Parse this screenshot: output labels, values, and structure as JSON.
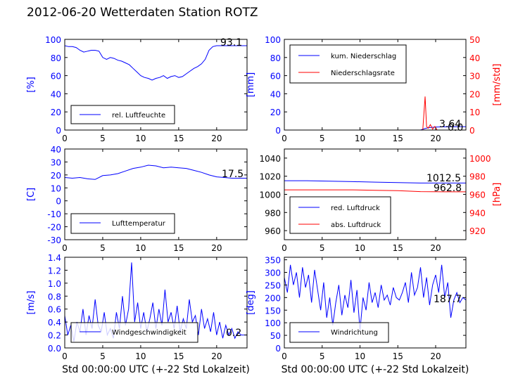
{
  "page": {
    "title": "2012-06-20 Wetterdaten Station ROTZ"
  },
  "chart_data": [
    {
      "type": "line",
      "ylabel": "[%]",
      "xlabel": "",
      "xlim": [
        0,
        24
      ],
      "ylim": [
        0,
        100
      ],
      "xticks": [
        0,
        5,
        10,
        15,
        20
      ],
      "yticks": [
        0,
        20,
        40,
        60,
        80,
        100
      ],
      "legend_position": "bottom-left",
      "current_value": "93.1",
      "series": [
        {
          "name": "rel. Luftfeuchte",
          "color": "#0000ff",
          "x": [
            0,
            0.5,
            1,
            1.5,
            2,
            2.5,
            3,
            3.5,
            4,
            4.5,
            5,
            5.5,
            6,
            6.5,
            7,
            7.5,
            8,
            8.5,
            9,
            9.5,
            10,
            10.5,
            11,
            11.5,
            12,
            12.5,
            13,
            13.5,
            14,
            14.5,
            15,
            15.5,
            16,
            16.5,
            17,
            17.5,
            18,
            18.5,
            19,
            19.5,
            20,
            20.5,
            21,
            21.5,
            22,
            22.5,
            23,
            23.5,
            24
          ],
          "y": [
            93,
            92,
            92,
            91,
            88,
            86,
            87,
            88,
            88,
            87,
            80,
            78,
            80,
            79,
            77,
            76,
            74,
            72,
            68,
            64,
            60,
            58,
            57,
            55,
            57,
            58,
            60,
            57,
            59,
            60,
            58,
            59,
            62,
            65,
            68,
            70,
            73,
            78,
            88,
            92,
            93,
            93,
            93,
            93,
            93,
            93,
            93,
            93,
            93
          ]
        }
      ]
    },
    {
      "type": "line",
      "ylabel": "[mm]",
      "ylabel_right": "[mm/std]",
      "xlabel": "",
      "xlim": [
        0,
        24
      ],
      "ylim": [
        0,
        100
      ],
      "ylim_right": [
        0,
        50
      ],
      "xticks": [
        0,
        5,
        10,
        15,
        20
      ],
      "yticks": [
        0,
        20,
        40,
        60,
        80,
        100
      ],
      "yticks_right": [
        0,
        10,
        20,
        30,
        40,
        50
      ],
      "legend_position": "top-left",
      "current_values": [
        "3.64",
        "0.0"
      ],
      "series": [
        {
          "name": "kum. Niederschlag",
          "color": "#0000ff",
          "axis": "left",
          "x": [
            0,
            18,
            18.5,
            19,
            19.5,
            20,
            21,
            22,
            23,
            24
          ],
          "y": [
            0,
            0,
            1.5,
            2.5,
            3,
            3.3,
            3.5,
            3.6,
            3.64,
            3.64
          ]
        },
        {
          "name": "Niederschlagsrate",
          "color": "#ff0000",
          "axis": "right",
          "x": [
            0,
            18.3,
            18.6,
            18.8,
            19,
            19.3,
            19.6,
            19.9,
            20.2,
            24
          ],
          "y": [
            0,
            0,
            18.5,
            2,
            1,
            3,
            0.5,
            2,
            0,
            0
          ]
        }
      ]
    },
    {
      "type": "line",
      "ylabel": "[C]",
      "xlabel": "",
      "xlim": [
        0,
        24
      ],
      "ylim": [
        -30,
        40
      ],
      "xticks": [
        0,
        5,
        10,
        15,
        20
      ],
      "yticks": [
        -30,
        -20,
        -10,
        0,
        10,
        20,
        30,
        40
      ],
      "legend_position": "bottom-left",
      "current_value": "17.5",
      "series": [
        {
          "name": "Lufttemperatur",
          "color": "#0000ff",
          "x": [
            0,
            1,
            2,
            3,
            4,
            5,
            6,
            7,
            8,
            9,
            10,
            11,
            12,
            13,
            14,
            15,
            16,
            17,
            18,
            19,
            20,
            21,
            22,
            23,
            24
          ],
          "y": [
            18,
            17.5,
            18,
            17,
            16.5,
            19.5,
            20,
            21,
            23,
            25,
            26,
            27.5,
            27,
            25.5,
            26,
            25.5,
            25,
            23.5,
            22,
            20,
            18.5,
            18,
            17.5,
            17.5,
            17.5
          ]
        }
      ]
    },
    {
      "type": "line",
      "ylabel": "",
      "ylabel_right": "[hPa]",
      "xlabel": "",
      "xlim": [
        0,
        24
      ],
      "ylim": [
        950,
        1050
      ],
      "ylim_right": [
        910,
        1010
      ],
      "xticks": [
        0,
        5,
        10,
        15,
        20
      ],
      "yticks": [
        960,
        980,
        1000,
        1020,
        1040
      ],
      "yticks_right": [
        920,
        940,
        960,
        980,
        1000
      ],
      "legend_position": "bottom-left",
      "current_values": [
        "1012.5",
        "962.8"
      ],
      "series": [
        {
          "name": "red. Luftdruck",
          "color": "#0000ff",
          "axis": "left",
          "x": [
            0,
            3,
            6,
            9,
            12,
            15,
            18,
            21,
            24
          ],
          "y": [
            1015,
            1015,
            1014.5,
            1014,
            1013.5,
            1013,
            1012.5,
            1012.5,
            1012.5
          ]
        },
        {
          "name": "abs. Luftdruck",
          "color": "#ff0000",
          "axis": "right",
          "x": [
            0,
            3,
            6,
            9,
            12,
            15,
            18,
            21,
            24
          ],
          "y": [
            965,
            965,
            965,
            965,
            964.5,
            964,
            963,
            962.8,
            962.8
          ]
        }
      ]
    },
    {
      "type": "line",
      "ylabel": "[m/s]",
      "xlabel": "Std 00:00:00 UTC (+-22 Std Lokalzeit)",
      "xlim": [
        0,
        24
      ],
      "ylim": [
        0,
        1.4
      ],
      "xticks": [
        0,
        5,
        10,
        15,
        20
      ],
      "yticks": [
        0.0,
        0.2,
        0.4,
        0.6,
        0.8,
        1.0,
        1.2,
        1.4
      ],
      "legend_position": "bottom-center",
      "current_value": "0.2",
      "series": [
        {
          "name": "Windgeschwindigkeit",
          "color": "#0000ff",
          "x": [
            0,
            0.4,
            0.8,
            1.2,
            1.6,
            2,
            2.4,
            2.8,
            3.2,
            3.6,
            4,
            4.4,
            4.8,
            5.2,
            5.6,
            6,
            6.4,
            6.8,
            7.2,
            7.6,
            8,
            8.4,
            8.8,
            9.2,
            9.6,
            10,
            10.4,
            10.8,
            11.2,
            11.6,
            12,
            12.4,
            12.8,
            13.2,
            13.6,
            14,
            14.4,
            14.8,
            15.2,
            15.6,
            16,
            16.4,
            16.8,
            17.2,
            17.6,
            18,
            18.4,
            18.8,
            19.2,
            19.6,
            20,
            20.4,
            20.8,
            21.2,
            21.6,
            22,
            22.4,
            22.8,
            23.2,
            23.6,
            24
          ],
          "y": [
            0.5,
            0.2,
            0.35,
            0.1,
            0.4,
            0.25,
            0.6,
            0.2,
            0.5,
            0.3,
            0.75,
            0.35,
            0.25,
            0.55,
            0.2,
            0.3,
            0.15,
            0.55,
            0.3,
            0.8,
            0.35,
            0.6,
            1.32,
            0.4,
            0.7,
            0.3,
            0.55,
            0.25,
            0.45,
            0.7,
            0.3,
            0.6,
            0.35,
            0.9,
            0.4,
            0.55,
            0.3,
            0.65,
            0.25,
            0.45,
            0.3,
            0.75,
            0.4,
            0.5,
            0.2,
            0.6,
            0.3,
            0.45,
            0.25,
            0.55,
            0.2,
            0.4,
            0.15,
            0.35,
            0.2,
            0.3,
            0.15,
            0.25,
            0.2,
            0.2,
            0.2
          ]
        }
      ]
    },
    {
      "type": "line",
      "ylabel": "[deg]",
      "xlabel": "Std 00:00:00 UTC (+-22 Std Lokalzeit)",
      "xlim": [
        0,
        24
      ],
      "ylim": [
        0,
        360
      ],
      "xticks": [
        0,
        5,
        10,
        15,
        20
      ],
      "yticks": [
        0,
        50,
        100,
        150,
        200,
        250,
        300,
        350
      ],
      "legend_position": "bottom-left",
      "current_value": "187.7",
      "series": [
        {
          "name": "Windrichtung",
          "color": "#0000ff",
          "x": [
            0,
            0.4,
            0.8,
            1.2,
            1.6,
            2,
            2.4,
            2.8,
            3.2,
            3.6,
            4,
            4.4,
            4.8,
            5.2,
            5.6,
            6,
            6.4,
            6.8,
            7.2,
            7.6,
            8,
            8.4,
            8.8,
            9.2,
            9.6,
            10,
            10.4,
            10.8,
            11.2,
            11.6,
            12,
            12.4,
            12.8,
            13.2,
            13.6,
            14,
            14.4,
            14.8,
            15.2,
            15.6,
            16,
            16.4,
            16.8,
            17.2,
            17.6,
            18,
            18.4,
            18.8,
            19.2,
            19.6,
            20,
            20.4,
            20.8,
            21.2,
            21.6,
            22,
            22.4,
            22.8,
            23.2,
            23.6,
            24
          ],
          "y": [
            280,
            220,
            330,
            250,
            300,
            200,
            320,
            240,
            290,
            180,
            310,
            230,
            150,
            260,
            120,
            200,
            90,
            180,
            250,
            130,
            210,
            160,
            270,
            140,
            230,
            70,
            200,
            150,
            260,
            180,
            220,
            160,
            250,
            190,
            210,
            170,
            240,
            200,
            190,
            220,
            260,
            180,
            300,
            210,
            240,
            320,
            200,
            280,
            170,
            250,
            290,
            220,
            330,
            200,
            260,
            120,
            190,
            220,
            180,
            200,
            190
          ]
        }
      ]
    }
  ]
}
